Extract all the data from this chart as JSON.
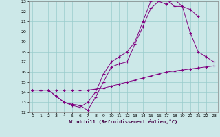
{
  "xlabel": "Windchill (Refroidissement éolien,°C)",
  "bg_color": "#cce8e8",
  "line_color": "#800080",
  "grid_color": "#99cccc",
  "xlim": [
    -0.5,
    23.5
  ],
  "ylim": [
    12,
    23
  ],
  "xticks": [
    0,
    1,
    2,
    3,
    4,
    5,
    6,
    7,
    8,
    9,
    10,
    11,
    12,
    13,
    14,
    15,
    16,
    17,
    18,
    19,
    20,
    21,
    22,
    23
  ],
  "yticks": [
    12,
    13,
    14,
    15,
    16,
    17,
    18,
    19,
    20,
    21,
    22,
    23
  ],
  "series1_x": [
    0,
    1,
    2,
    3,
    4,
    5,
    6,
    7,
    8,
    9,
    10,
    11,
    12,
    13,
    14,
    15,
    16,
    17,
    18,
    19,
    20,
    21,
    22,
    23
  ],
  "series1_y": [
    14.2,
    14.2,
    14.2,
    14.2,
    14.2,
    14.2,
    14.2,
    14.2,
    14.3,
    14.4,
    14.6,
    14.8,
    15.0,
    15.2,
    15.4,
    15.6,
    15.8,
    16.0,
    16.1,
    16.2,
    16.3,
    16.4,
    16.5,
    16.6
  ],
  "series2_x": [
    0,
    1,
    2,
    3,
    4,
    5,
    6,
    6,
    7,
    8,
    9,
    10,
    11,
    12,
    13,
    14,
    15,
    16,
    17,
    18,
    19,
    20,
    21,
    22,
    23
  ],
  "series2_y": [
    14.2,
    14.2,
    14.2,
    13.6,
    13.0,
    12.8,
    12.7,
    12.7,
    12.2,
    13.5,
    15.0,
    16.5,
    16.8,
    17.0,
    18.8,
    20.5,
    22.3,
    23.0,
    22.7,
    23.2,
    22.5,
    19.9,
    18.0,
    17.5,
    17.0
  ],
  "series3_x": [
    0,
    1,
    2,
    3,
    4,
    5,
    6,
    7,
    8,
    9,
    10,
    11,
    12,
    13,
    14,
    15,
    16,
    17,
    18,
    19,
    20,
    21
  ],
  "series3_y": [
    14.2,
    14.2,
    14.2,
    13.6,
    13.0,
    12.7,
    12.5,
    13.0,
    14.0,
    15.8,
    17.0,
    17.5,
    18.0,
    19.0,
    21.0,
    23.0,
    23.3,
    23.2,
    22.5,
    22.5,
    22.2,
    21.5
  ]
}
